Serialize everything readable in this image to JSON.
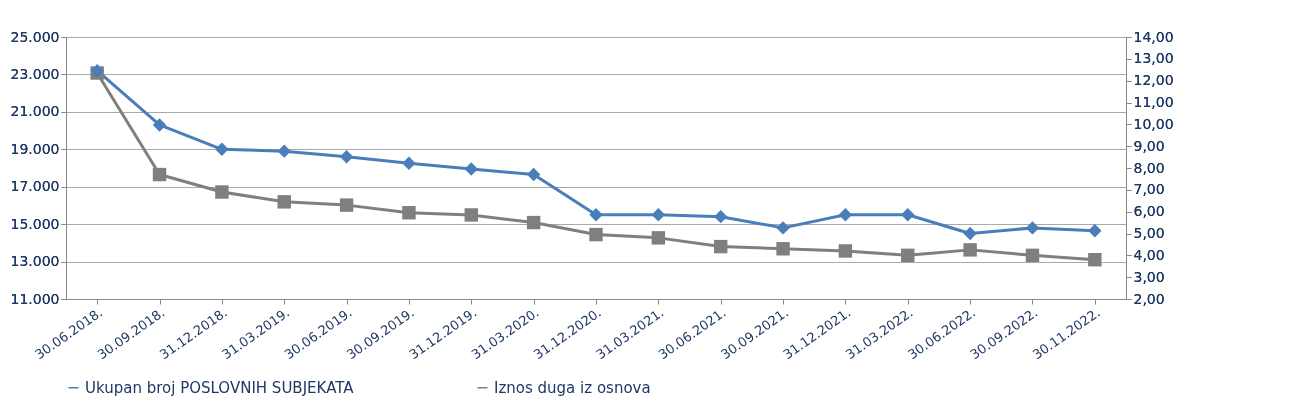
{
  "chart_data": {
    "type": "line",
    "categories": [
      "30.06.2018.",
      "30.09.2018.",
      "31.12.2018.",
      "31.03.2019.",
      "30.06.2019.",
      "30.09.2019.",
      "31.12.2019.",
      "31.03.2020.",
      "31.12.2020.",
      "31.03.2021.",
      "30.06.2021.",
      "30.09.2021.",
      "31.12.2021.",
      "31.03.2022.",
      "30.06.2022.",
      "30.09.2022.",
      "30.11.2022."
    ],
    "series": [
      {
        "name": "Ukupan broj POSLOVNIH SUBJEKATA",
        "color": "#4a7ebb",
        "marker": "diamond",
        "values": [
          23200,
          20300,
          19000,
          18900,
          18600,
          18250,
          17950,
          17650,
          15500,
          15500,
          15400,
          14800,
          15500,
          15500,
          14500,
          14800,
          14650
        ]
      },
      {
        "name": "Iznos duga iz osnova",
        "color": "#7f7f7f",
        "marker": "square",
        "axis": "y2",
        "values": [
          12.35,
          7.7,
          6.9,
          6.45,
          6.3,
          5.95,
          5.85,
          5.5,
          4.95,
          4.8,
          4.4,
          4.3,
          4.2,
          4.0,
          4.25,
          4.0,
          3.8
        ]
      }
    ],
    "ylim": [
      11000,
      25000
    ],
    "yticks": [
      {
        "value": 11000,
        "label": "11.000"
      },
      {
        "value": 13000,
        "label": "13.000"
      },
      {
        "value": 15000,
        "label": "15.000"
      },
      {
        "value": 17000,
        "label": "17.000"
      },
      {
        "value": 19000,
        "label": "19.000"
      },
      {
        "value": 21000,
        "label": "21.000"
      },
      {
        "value": 23000,
        "label": "23.000"
      },
      {
        "value": 25000,
        "label": "25.000"
      }
    ],
    "y2lim": [
      2,
      14
    ],
    "y2ticks": [
      {
        "value": 2,
        "label": "2,00"
      },
      {
        "value": 3,
        "label": "3,00"
      },
      {
        "value": 4,
        "label": "4,00"
      },
      {
        "value": 5,
        "label": "5,00"
      },
      {
        "value": 6,
        "label": "6,00"
      },
      {
        "value": 7,
        "label": "7,00"
      },
      {
        "value": 8,
        "label": "8,00"
      },
      {
        "value": 9,
        "label": "9,00"
      },
      {
        "value": 10,
        "label": "10,00"
      },
      {
        "value": 11,
        "label": "11,00"
      },
      {
        "value": 12,
        "label": "12,00"
      },
      {
        "value": 13,
        "label": "13,00"
      },
      {
        "value": 14,
        "label": "14,00"
      }
    ],
    "grid": "y",
    "legend": "bottom",
    "line_style": "solid"
  }
}
